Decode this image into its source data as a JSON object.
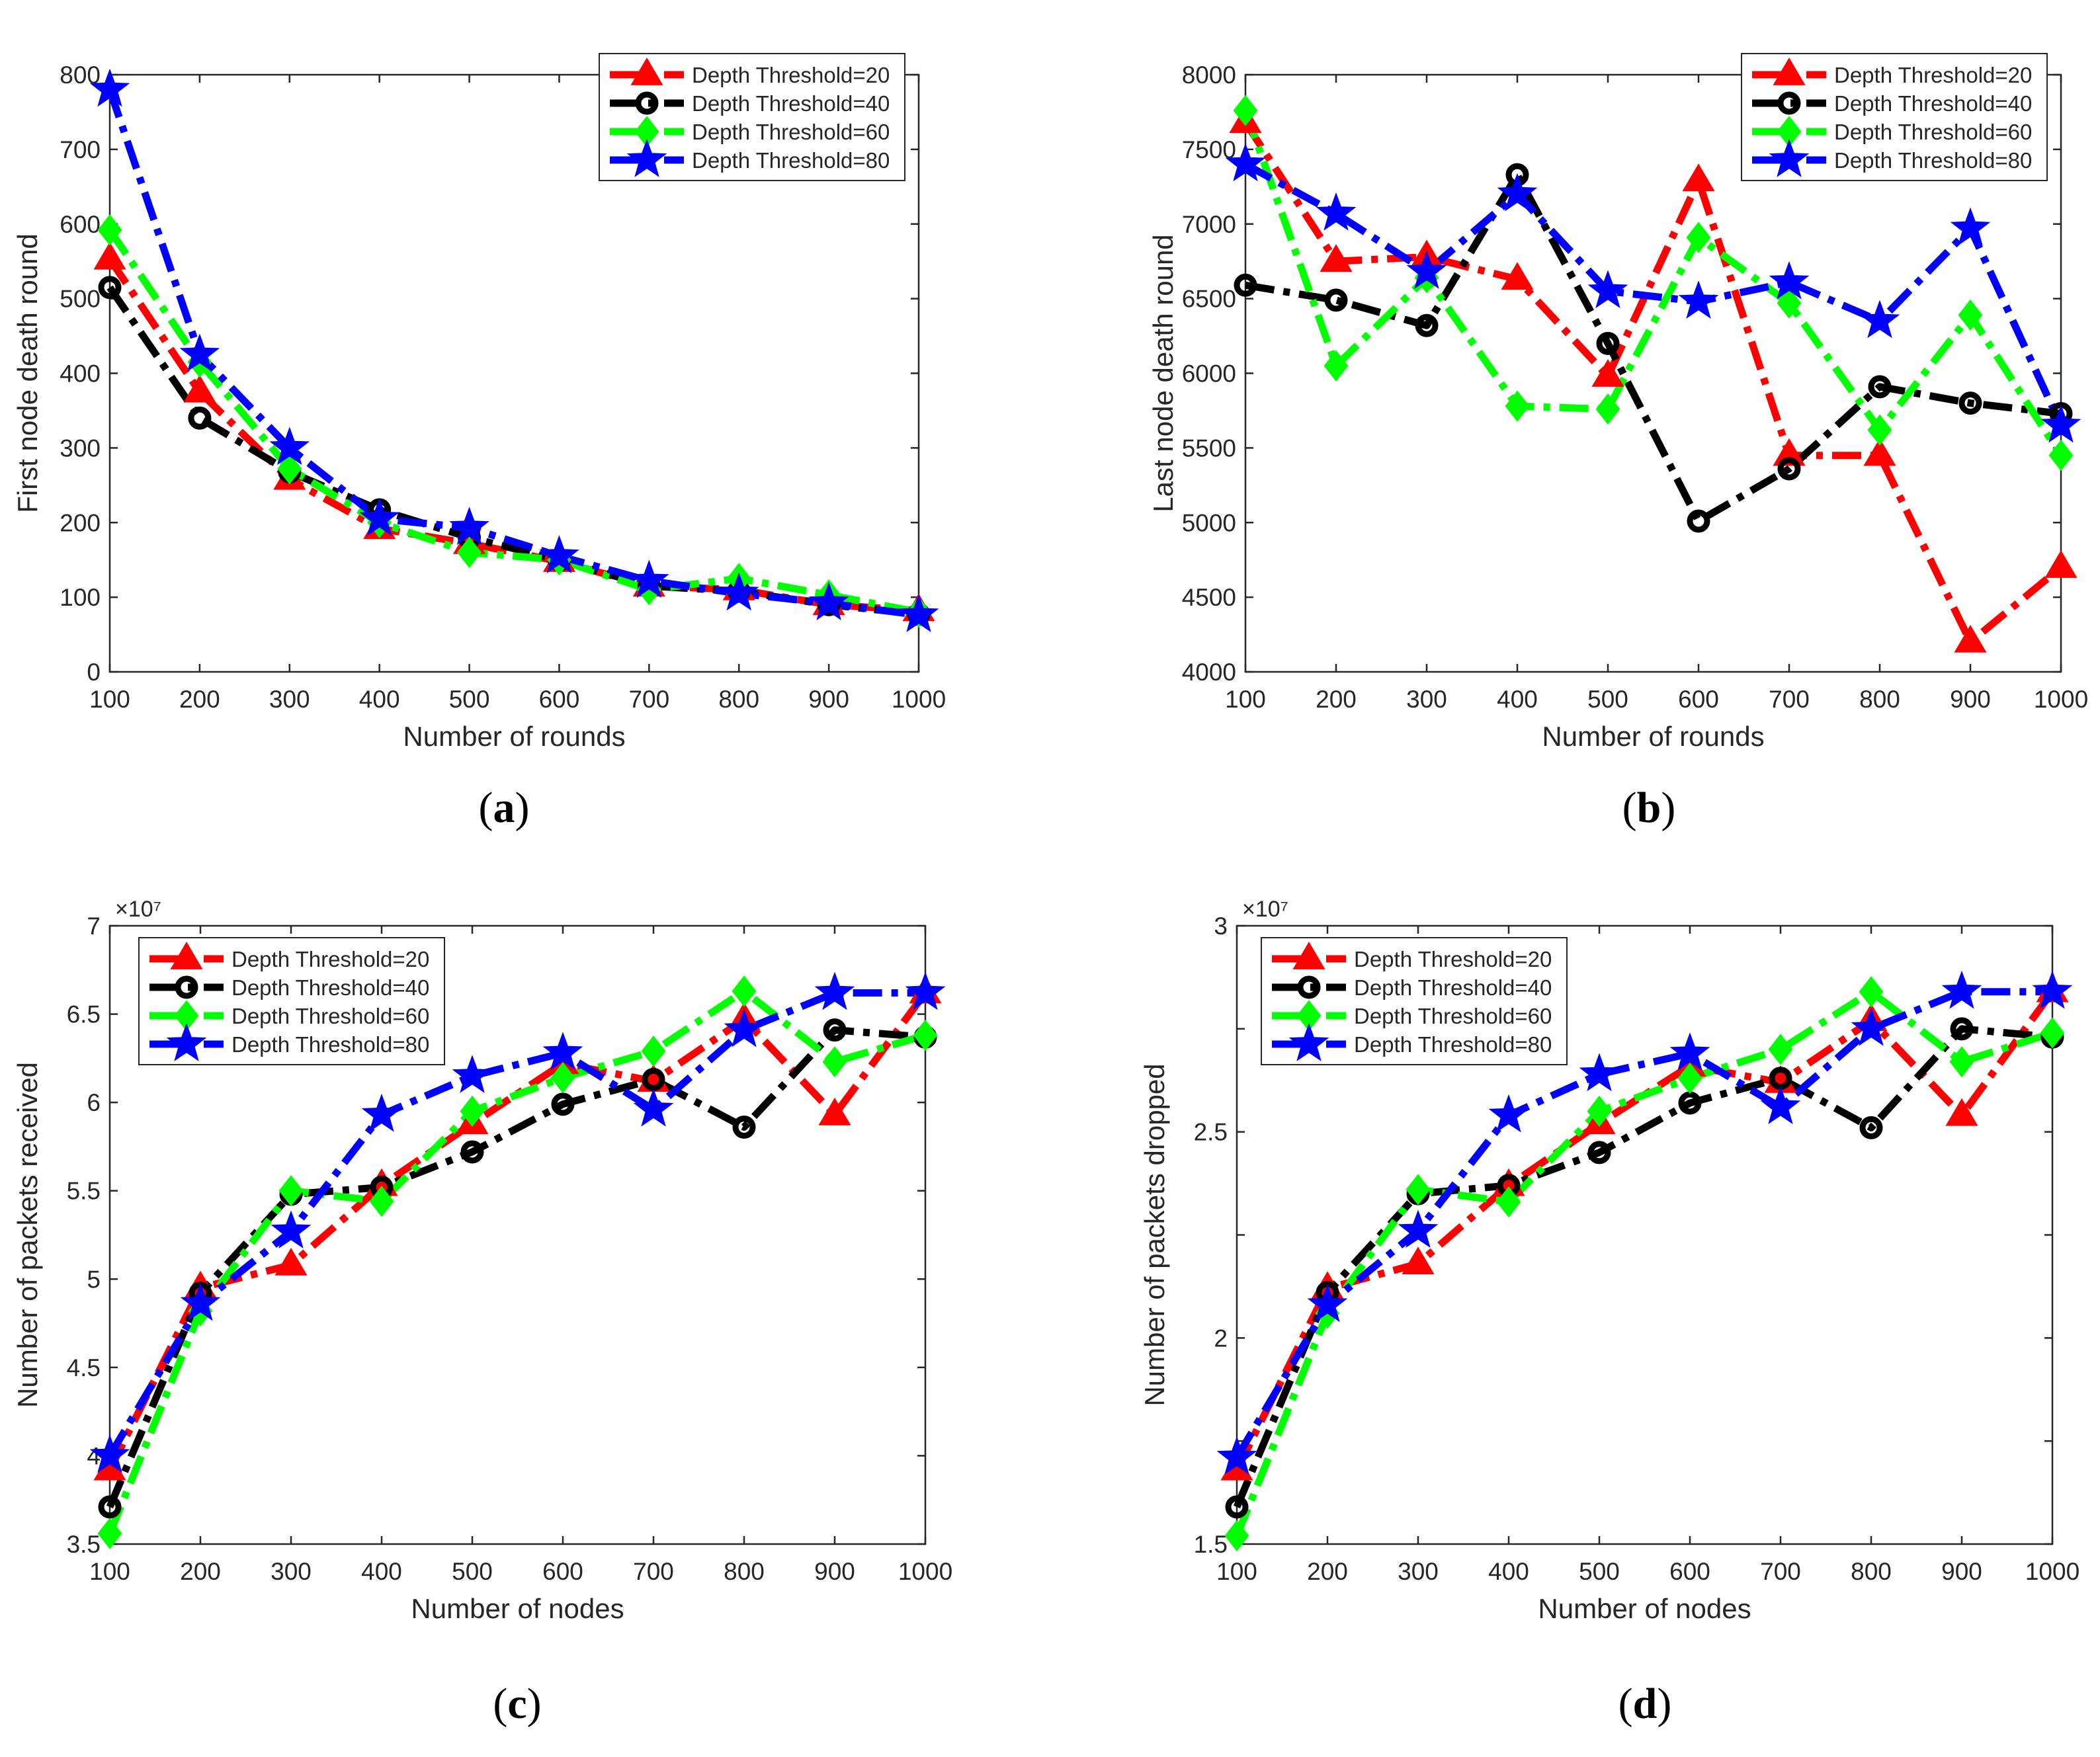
{
  "chart_data": [
    {
      "panel": "a",
      "caption": "(a)",
      "caption_letter": "a",
      "type": "line",
      "xlabel": "Number of rounds",
      "ylabel": "First node death round",
      "x": [
        100,
        200,
        300,
        400,
        500,
        600,
        700,
        800,
        900,
        1000
      ],
      "xticks": [
        "100",
        "200",
        "300",
        "400",
        "500",
        "600",
        "700",
        "800",
        "900",
        "1000"
      ],
      "xlim": [
        100,
        1000
      ],
      "ylim": [
        0,
        800
      ],
      "yticks": [
        "0",
        "100",
        "200",
        "300",
        "400",
        "500",
        "600",
        "700",
        "800"
      ],
      "exponent_label": "",
      "legend_position": "top-right",
      "grid": false,
      "series": [
        {
          "name": "Depth Threshold=20",
          "color": "#ff0000",
          "marker": "triangle",
          "values": [
            553,
            375,
            258,
            192,
            172,
            148,
            115,
            110,
            90,
            82
          ]
        },
        {
          "name": "Depth Threshold=40",
          "color": "#000000",
          "marker": "circle",
          "values": [
            515,
            340,
            268,
            217,
            180,
            150,
            115,
            108,
            90,
            77
          ]
        },
        {
          "name": "Depth Threshold=60",
          "color": "#00ff00",
          "marker": "diamond",
          "values": [
            592,
            415,
            272,
            200,
            160,
            150,
            110,
            125,
            103,
            80
          ]
        },
        {
          "name": "Depth Threshold=80",
          "color": "#0000ff",
          "marker": "star",
          "values": [
            780,
            425,
            300,
            205,
            193,
            155,
            122,
            105,
            92,
            76
          ]
        }
      ]
    },
    {
      "panel": "b",
      "caption": "(b)",
      "caption_letter": "b",
      "type": "line",
      "xlabel": "Number of rounds",
      "ylabel": "Last node death round",
      "x": [
        100,
        200,
        300,
        400,
        500,
        600,
        700,
        800,
        900,
        1000
      ],
      "xticks": [
        "100",
        "200",
        "300",
        "400",
        "500",
        "600",
        "700",
        "800",
        "900",
        "1000"
      ],
      "xlim": [
        100,
        1000
      ],
      "ylim": [
        4000,
        8000
      ],
      "yticks": [
        "4000",
        "4500",
        "5000",
        "5500",
        "6000",
        "6500",
        "7000",
        "7500",
        "8000"
      ],
      "exponent_label": "",
      "legend_position": "top-right",
      "grid": false,
      "series": [
        {
          "name": "Depth Threshold=20",
          "color": "#ff0000",
          "marker": "triangle",
          "values": [
            7680,
            6750,
            6780,
            6630,
            5980,
            7290,
            5450,
            5450,
            4200,
            4700
          ]
        },
        {
          "name": "Depth Threshold=40",
          "color": "#000000",
          "marker": "circle",
          "values": [
            6590,
            6490,
            6320,
            7330,
            6200,
            5010,
            5360,
            5910,
            5800,
            5730
          ]
        },
        {
          "name": "Depth Threshold=60",
          "color": "#00ff00",
          "marker": "diamond",
          "values": [
            7760,
            6050,
            6640,
            5780,
            5760,
            6910,
            6470,
            5620,
            6390,
            5450
          ]
        },
        {
          "name": "Depth Threshold=80",
          "color": "#0000ff",
          "marker": "star",
          "values": [
            7400,
            7070,
            6680,
            7200,
            6550,
            6480,
            6610,
            6350,
            6970,
            5650
          ]
        }
      ]
    },
    {
      "panel": "c",
      "caption": "(c)",
      "caption_letter": "c",
      "type": "line",
      "xlabel": "Number of nodes",
      "ylabel": "Number of packets received",
      "x": [
        100,
        200,
        300,
        400,
        500,
        600,
        700,
        800,
        900,
        1000
      ],
      "xticks": [
        "100",
        "200",
        "300",
        "400",
        "500",
        "600",
        "700",
        "800",
        "900",
        "1000"
      ],
      "xlim": [
        100,
        1000
      ],
      "ylim": [
        3.5,
        7
      ],
      "yticks": [
        "3.5",
        "4",
        "4.5",
        "5",
        "5.5",
        "6",
        "6.5",
        "7"
      ],
      "exponent_label": "×10⁷",
      "legend_position": "top-left",
      "grid": false,
      "series": [
        {
          "name": "Depth Threshold=20",
          "color": "#ff0000",
          "marker": "triangle",
          "values": [
            3.92,
            4.95,
            5.08,
            5.53,
            5.88,
            6.22,
            6.12,
            6.47,
            5.93,
            6.62
          ]
        },
        {
          "name": "Depth Threshold=40",
          "color": "#000000",
          "marker": "circle",
          "values": [
            3.71,
            4.92,
            5.48,
            5.52,
            5.72,
            5.99,
            6.13,
            5.86,
            6.41,
            6.37
          ]
        },
        {
          "name": "Depth Threshold=60",
          "color": "#00ff00",
          "marker": "diamond",
          "values": [
            3.56,
            4.82,
            5.5,
            5.44,
            5.95,
            6.14,
            6.29,
            6.63,
            6.23,
            6.38
          ]
        },
        {
          "name": "Depth Threshold=80",
          "color": "#0000ff",
          "marker": "star",
          "values": [
            4.0,
            4.86,
            5.27,
            5.93,
            6.15,
            6.28,
            5.96,
            6.41,
            6.62,
            6.62
          ]
        }
      ]
    },
    {
      "panel": "d",
      "caption": "(d)",
      "caption_letter": "d",
      "type": "line",
      "xlabel": "Number of nodes",
      "ylabel": "Number of packets dropped",
      "x": [
        100,
        200,
        300,
        400,
        500,
        600,
        700,
        800,
        900,
        1000
      ],
      "xticks": [
        "100",
        "200",
        "300",
        "400",
        "500",
        "600",
        "700",
        "800",
        "900",
        "1000"
      ],
      "xlim": [
        100,
        1000
      ],
      "ylim": [
        1.5,
        3
      ],
      "yticks": [
        "1.5",
        "",
        "2",
        "",
        "2.5",
        "",
        "3"
      ],
      "exponent_label": "×10⁷",
      "legend_position": "top-left",
      "grid": false,
      "series": [
        {
          "name": "Depth Threshold=20",
          "color": "#ff0000",
          "marker": "triangle",
          "values": [
            1.68,
            2.12,
            2.18,
            2.37,
            2.52,
            2.66,
            2.62,
            2.77,
            2.54,
            2.84
          ]
        },
        {
          "name": "Depth Threshold=40",
          "color": "#000000",
          "marker": "circle",
          "values": [
            1.59,
            2.11,
            2.35,
            2.37,
            2.45,
            2.57,
            2.63,
            2.51,
            2.75,
            2.73
          ]
        },
        {
          "name": "Depth Threshold=60",
          "color": "#00ff00",
          "marker": "diamond",
          "values": [
            1.52,
            2.06,
            2.36,
            2.33,
            2.55,
            2.63,
            2.7,
            2.84,
            2.67,
            2.74
          ]
        },
        {
          "name": "Depth Threshold=80",
          "color": "#0000ff",
          "marker": "star",
          "values": [
            1.71,
            2.08,
            2.26,
            2.54,
            2.64,
            2.69,
            2.56,
            2.75,
            2.84,
            2.84
          ]
        }
      ]
    }
  ]
}
